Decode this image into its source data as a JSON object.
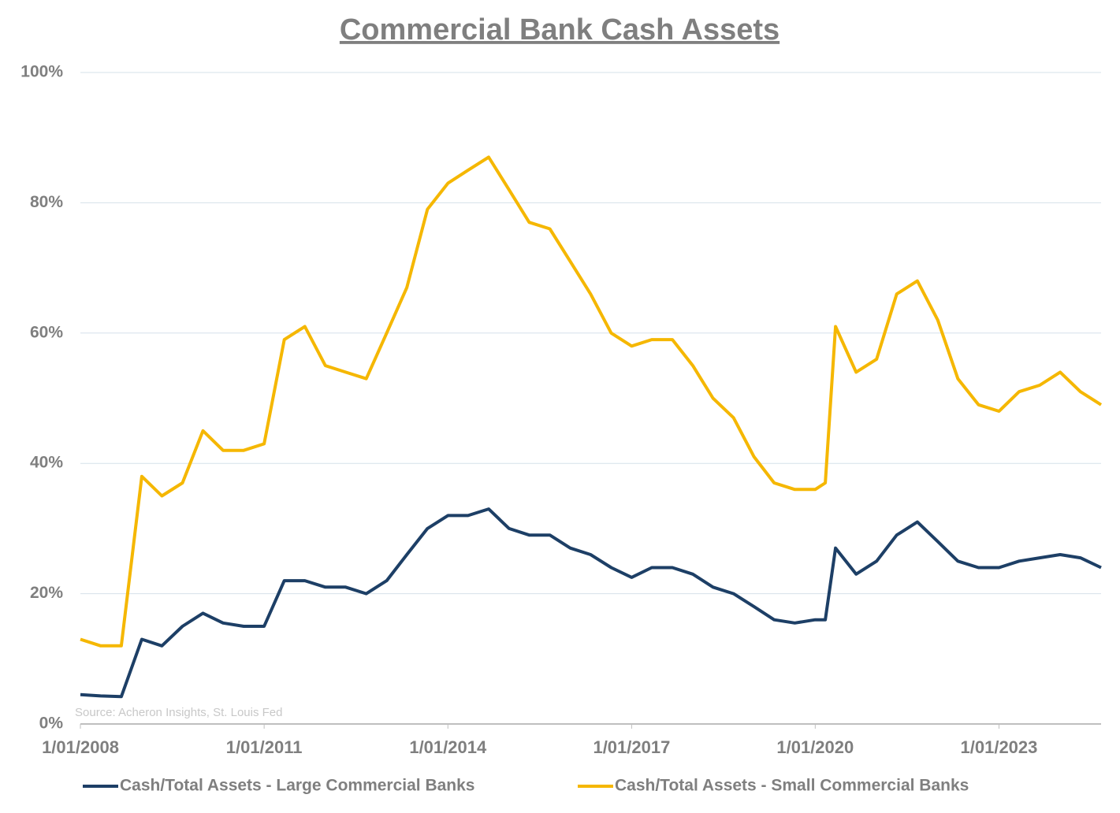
{
  "chart_data": {
    "type": "line",
    "title": "Commercial Bank Cash Assets",
    "annotation": "Source: Acheron Insights, St. Louis Fed",
    "x": [
      "2008-01-01",
      "2008-05-01",
      "2008-09-01",
      "2009-01-01",
      "2009-05-01",
      "2009-09-01",
      "2010-01-01",
      "2010-05-01",
      "2010-09-01",
      "2011-01-01",
      "2011-05-01",
      "2011-09-01",
      "2012-01-01",
      "2012-05-01",
      "2012-09-01",
      "2013-01-01",
      "2013-05-01",
      "2013-09-01",
      "2014-01-01",
      "2014-05-01",
      "2014-09-01",
      "2015-01-01",
      "2015-05-01",
      "2015-09-01",
      "2016-01-01",
      "2016-05-01",
      "2016-09-01",
      "2017-01-01",
      "2017-05-01",
      "2017-09-01",
      "2018-01-01",
      "2018-05-01",
      "2018-09-01",
      "2019-01-01",
      "2019-05-01",
      "2019-09-01",
      "2020-01-01",
      "2020-03-01",
      "2020-05-01",
      "2020-09-01",
      "2021-01-01",
      "2021-05-01",
      "2021-09-01",
      "2022-01-01",
      "2022-05-01",
      "2022-09-01",
      "2023-01-01",
      "2023-05-01",
      "2023-09-01",
      "2024-01-01",
      "2024-05-01",
      "2024-09-01"
    ],
    "series": [
      {
        "name": "Cash/Total Assets - Large Commercial Banks",
        "color": "#1d3f66",
        "values": [
          4.5,
          4.3,
          4.2,
          13,
          12,
          15,
          17,
          15.5,
          15,
          15,
          22,
          22,
          21,
          21,
          20,
          22,
          26,
          30,
          32,
          32,
          33,
          30,
          29,
          29,
          27,
          26,
          24,
          22.5,
          24,
          24,
          23,
          21,
          20,
          18,
          16,
          15.5,
          16,
          16,
          27,
          23,
          25,
          29,
          31,
          28,
          25,
          24,
          24,
          25,
          25.5,
          26,
          25.5,
          24
        ]
      },
      {
        "name": "Cash/Total Assets - Small Commercial Banks",
        "color": "#f5b700",
        "values": [
          13,
          12,
          12,
          38,
          35,
          37,
          45,
          42,
          42,
          43,
          59,
          61,
          55,
          54,
          53,
          60,
          67,
          79,
          83,
          85,
          87,
          82,
          77,
          76,
          71,
          66,
          60,
          58,
          59,
          59,
          55,
          50,
          47,
          41,
          37,
          36,
          36,
          37,
          61,
          54,
          56,
          66,
          68,
          62,
          53,
          49,
          48,
          51,
          52,
          54,
          51,
          49
        ]
      }
    ],
    "xlim": [
      "2008-01-01",
      "2024-09-01"
    ],
    "xticks": [
      {
        "value": "2008-01-01",
        "label": "1/01/2008"
      },
      {
        "value": "2011-01-01",
        "label": "1/01/2011"
      },
      {
        "value": "2014-01-01",
        "label": "1/01/2014"
      },
      {
        "value": "2017-01-01",
        "label": "1/01/2017"
      },
      {
        "value": "2020-01-01",
        "label": "1/01/2020"
      },
      {
        "value": "2023-01-01",
        "label": "1/01/2023"
      }
    ],
    "ylim": [
      0,
      100
    ],
    "yticks": [
      {
        "value": 0,
        "label": "0%"
      },
      {
        "value": 20,
        "label": "20%"
      },
      {
        "value": 40,
        "label": "40%"
      },
      {
        "value": 60,
        "label": "60%"
      },
      {
        "value": 80,
        "label": "80%"
      },
      {
        "value": 100,
        "label": "100%"
      }
    ],
    "grid": true,
    "legend": "bottom"
  }
}
